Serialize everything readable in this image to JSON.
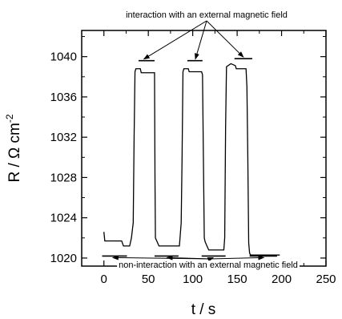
{
  "chart_data": {
    "type": "line",
    "title": "",
    "xlabel": "t / s",
    "ylabel": "R / Ω cm",
    "ylabel_superscript": "-2",
    "xlim": [
      -25,
      250
    ],
    "ylim": [
      1019.2,
      1042.6
    ],
    "x_ticks": [
      0,
      50,
      100,
      150,
      200,
      250
    ],
    "y_ticks": [
      1020,
      1024,
      1028,
      1032,
      1036,
      1040
    ],
    "grid": false,
    "legend": "none",
    "series": [
      {
        "color": "#000000",
        "points": [
          [
            0,
            1022.6
          ],
          [
            1,
            1021.7
          ],
          [
            20,
            1021.7
          ],
          [
            22,
            1021.2
          ],
          [
            29,
            1021.2
          ],
          [
            31,
            1022.0
          ],
          [
            33,
            1023.5
          ],
          [
            34,
            1032.0
          ],
          [
            35,
            1038.5
          ],
          [
            36,
            1038.8
          ],
          [
            41,
            1038.8
          ],
          [
            42,
            1038.4
          ],
          [
            48,
            1038.4
          ],
          [
            52,
            1038.4
          ],
          [
            57,
            1038.4
          ],
          [
            57.5,
            1028.0
          ],
          [
            58,
            1022.0
          ],
          [
            59,
            1021.8
          ],
          [
            62,
            1021.2
          ],
          [
            78,
            1021.2
          ],
          [
            80,
            1021.2
          ],
          [
            85,
            1021.2
          ],
          [
            87,
            1023.5
          ],
          [
            88,
            1030.0
          ],
          [
            89,
            1038.5
          ],
          [
            90,
            1038.8
          ],
          [
            95,
            1038.8
          ],
          [
            96,
            1038.5
          ],
          [
            110,
            1038.5
          ],
          [
            111,
            1038.2
          ],
          [
            112,
            1030.0
          ],
          [
            113,
            1022.0
          ],
          [
            114,
            1021.6
          ],
          [
            116,
            1021.2
          ],
          [
            118,
            1020.8
          ],
          [
            132,
            1020.8
          ],
          [
            135,
            1020.8
          ],
          [
            136,
            1022.0
          ],
          [
            137,
            1033.0
          ],
          [
            138,
            1039.0
          ],
          [
            143,
            1039.3
          ],
          [
            148,
            1039.1
          ],
          [
            149,
            1038.8
          ],
          [
            160,
            1038.8
          ],
          [
            161,
            1037.0
          ],
          [
            162,
            1030.0
          ],
          [
            163,
            1021.5
          ],
          [
            164,
            1020.5
          ],
          [
            165,
            1020.3
          ],
          [
            198,
            1020.3
          ]
        ]
      }
    ],
    "ref_lines": [
      {
        "x": [
          39,
          57
        ],
        "y": 1039.6
      },
      {
        "x": [
          94,
          111
        ],
        "y": 1039.6
      },
      {
        "x": [
          147,
          167
        ],
        "y": 1039.8
      },
      {
        "x": [
          -2,
          26
        ],
        "y": 1020.2
      },
      {
        "x": [
          57,
          84
        ],
        "y": 1020.2
      },
      {
        "x": [
          110,
          137
        ],
        "y": 1020.2
      },
      {
        "x": [
          164,
          195
        ],
        "y": 1020.2
      }
    ],
    "annotations": [
      {
        "text": "interaction with an external magnetic field",
        "position": "top-center",
        "targets": [
          [
            45,
            1039.6
          ],
          [
            103,
            1039.6
          ],
          [
            157,
            1039.8
          ]
        ]
      },
      {
        "text": "non-interaction with an external magnetic field",
        "position": "bottom-center",
        "targets": [
          [
            10,
            1020.2
          ],
          [
            71,
            1020.2
          ],
          [
            123,
            1020.2
          ],
          [
            180,
            1020.2
          ]
        ]
      }
    ]
  }
}
